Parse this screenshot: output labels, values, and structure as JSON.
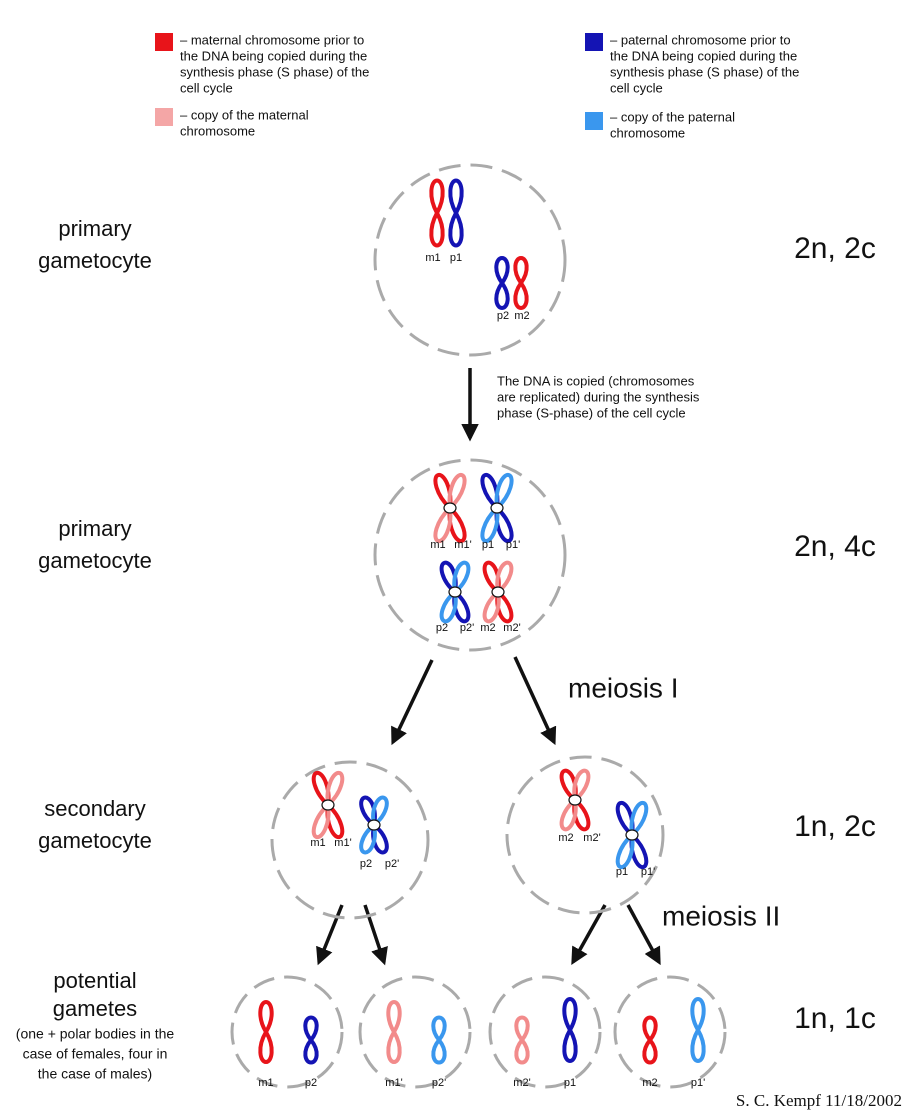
{
  "legend": [
    {
      "lines": [
        "– maternal chromosome prior to",
        "the DNA being copied during the",
        "synthesis phase (S phase) of the",
        "cell cycle"
      ]
    },
    {
      "lines": [
        "– copy of the maternal",
        "chromosome"
      ]
    },
    {
      "lines": [
        "– paternal chromosome prior to",
        "the DNA being copied during the",
        "synthesis phase (S phase) of the",
        "cell cycle"
      ]
    },
    {
      "lines": [
        "– copy of the paternal",
        "chromosome"
      ]
    }
  ],
  "stages": [
    {
      "label": [
        "primary",
        "gametocyte"
      ],
      "ploidy": "2n, 2c"
    },
    {
      "label": [
        "primary",
        "gametocyte"
      ],
      "ploidy": "2n, 4c"
    },
    {
      "label": [
        "secondary",
        "gametocyte"
      ],
      "ploidy": "1n, 2c"
    },
    {
      "label": [
        "potential",
        "gametes"
      ],
      "detail": [
        "(one + polar bodies in the",
        "case of females, four in",
        "the case of males)"
      ],
      "ploidy": "1n, 1c"
    }
  ],
  "note": [
    "The DNA is copied (chromosomes",
    "are replicated) during the synthesis",
    "phase (S-phase) of the cell cycle"
  ],
  "meiosis_labels": [
    "meiosis I",
    "meiosis II"
  ],
  "cells": [
    {
      "labels": [
        "m1",
        "p1",
        "p2",
        "m2"
      ]
    },
    {
      "labels": [
        "m1",
        "m1'",
        "p1",
        "p1'",
        "p2",
        "p2'",
        "m2",
        "m2'"
      ]
    },
    {
      "labels": [
        "m1",
        "m1'",
        "p2",
        "p2'"
      ]
    },
    {
      "labels": [
        "m2",
        "m2'",
        "p1",
        "p1'"
      ]
    },
    {
      "labels": [
        "m1",
        "p2"
      ]
    },
    {
      "labels": [
        "m1'",
        "p2'"
      ]
    },
    {
      "labels": [
        "m2'",
        "p1"
      ]
    },
    {
      "labels": [
        "m2",
        "p1'"
      ]
    }
  ],
  "credit": "S. C. Kempf 11/18/2002"
}
